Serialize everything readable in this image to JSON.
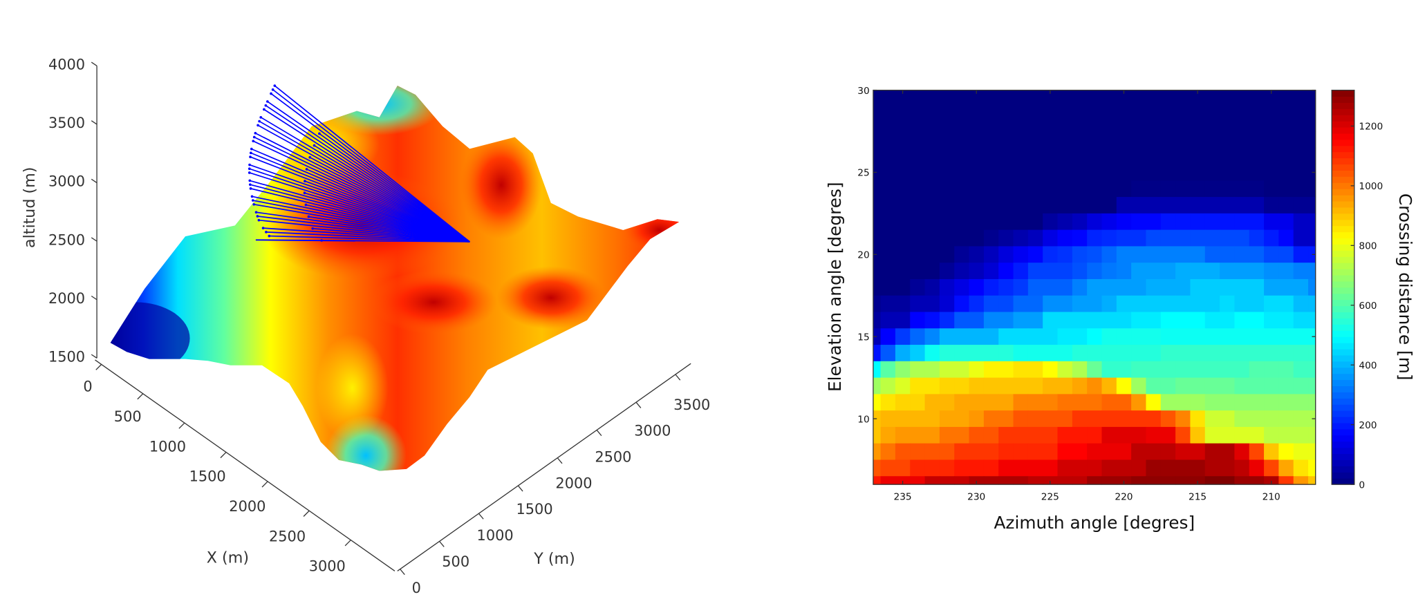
{
  "chart_data": [
    {
      "type": "surface",
      "xlabel": "X (m)",
      "ylabel": "Y (m)",
      "zlabel": "altitud (m)",
      "xticks": [
        "0",
        "500",
        "1000",
        "1500",
        "2000",
        "2500",
        "3000"
      ],
      "yticks": [
        "0",
        "500",
        "1000",
        "1500",
        "2000",
        "2500",
        "3000",
        "3500"
      ],
      "zticks": [
        "1500",
        "2000",
        "2500",
        "3000",
        "3500",
        "4000"
      ],
      "zlim": [
        1500,
        4000
      ],
      "colormap": "jet",
      "rays_color": "#0000ff"
    },
    {
      "type": "heatmap",
      "xlabel": "Azimuth angle [degres]",
      "ylabel": "Elevation angle [degres]",
      "colorbar_label": "Crossing distance [m]",
      "colormap": "jet",
      "clim": [
        0,
        1320
      ],
      "xlim": [
        237,
        207
      ],
      "ylim": [
        6,
        30
      ],
      "xticks": [
        "235",
        "230",
        "225",
        "220",
        "215",
        "210"
      ],
      "yticks": [
        "10",
        "15",
        "20",
        "25",
        "30"
      ],
      "colorbar_ticks": [
        "0",
        "200",
        "400",
        "600",
        "800",
        "1000",
        "1200"
      ],
      "x": [
        237,
        236,
        235,
        234,
        233,
        232,
        231,
        230,
        229,
        228,
        227,
        226,
        225,
        224,
        223,
        222,
        221,
        220,
        219,
        218,
        217,
        216,
        215,
        214,
        213,
        212,
        211,
        210,
        209,
        208,
        207
      ],
      "y": [
        30,
        29,
        28,
        27,
        26,
        25,
        24,
        23,
        22,
        21,
        20,
        19,
        18,
        17,
        16,
        15,
        14,
        13,
        12,
        11,
        10,
        9,
        8,
        7,
        6
      ],
      "z": [
        [
          0,
          0,
          0,
          0,
          0,
          0,
          0,
          0,
          0,
          0,
          0,
          0,
          0,
          0,
          0,
          0,
          0,
          0,
          0,
          0,
          0,
          0,
          0,
          0,
          0,
          0,
          0,
          0,
          0,
          0,
          0
        ],
        [
          0,
          0,
          0,
          0,
          0,
          0,
          0,
          0,
          0,
          0,
          0,
          0,
          0,
          0,
          0,
          0,
          0,
          0,
          0,
          0,
          0,
          0,
          0,
          0,
          0,
          0,
          0,
          0,
          0,
          0,
          0
        ],
        [
          0,
          0,
          0,
          0,
          0,
          0,
          0,
          0,
          0,
          0,
          0,
          0,
          0,
          0,
          0,
          0,
          0,
          0,
          0,
          0,
          0,
          0,
          0,
          0,
          0,
          0,
          0,
          0,
          0,
          0,
          0
        ],
        [
          0,
          0,
          0,
          0,
          0,
          0,
          0,
          0,
          0,
          0,
          0,
          0,
          0,
          0,
          0,
          0,
          0,
          0,
          0,
          0,
          0,
          0,
          0,
          0,
          0,
          0,
          0,
          0,
          0,
          0,
          0
        ],
        [
          0,
          0,
          0,
          0,
          0,
          0,
          0,
          0,
          0,
          0,
          0,
          0,
          0,
          0,
          0,
          0,
          0,
          0,
          0,
          0,
          0,
          0,
          0,
          0,
          0,
          0,
          0,
          0,
          0,
          0,
          0
        ],
        [
          0,
          0,
          0,
          0,
          0,
          0,
          0,
          0,
          0,
          0,
          0,
          0,
          0,
          0,
          0,
          0,
          0,
          0,
          0,
          0,
          0,
          0,
          0,
          0,
          0,
          0,
          0,
          0,
          0,
          0,
          0
        ],
        [
          0,
          0,
          0,
          0,
          0,
          0,
          0,
          0,
          0,
          0,
          0,
          0,
          0,
          0,
          0,
          0,
          0,
          0,
          10,
          10,
          10,
          10,
          10,
          10,
          10,
          10,
          10,
          0,
          0,
          0,
          0
        ],
        [
          0,
          0,
          0,
          0,
          0,
          0,
          0,
          0,
          0,
          0,
          0,
          0,
          0,
          0,
          0,
          0,
          0,
          60,
          60,
          60,
          60,
          60,
          60,
          60,
          60,
          60,
          60,
          25,
          25,
          25,
          25
        ],
        [
          0,
          0,
          0,
          0,
          0,
          0,
          0,
          0,
          0,
          0,
          0,
          0,
          40,
          60,
          80,
          120,
          140,
          160,
          170,
          170,
          190,
          190,
          190,
          190,
          190,
          190,
          190,
          140,
          140,
          90,
          90
        ],
        [
          0,
          0,
          0,
          0,
          0,
          0,
          0,
          0,
          20,
          40,
          60,
          80,
          130,
          160,
          170,
          210,
          220,
          230,
          230,
          260,
          260,
          260,
          260,
          260,
          260,
          260,
          230,
          200,
          170,
          90,
          90
        ],
        [
          0,
          0,
          0,
          0,
          0,
          0,
          30,
          50,
          80,
          120,
          150,
          170,
          220,
          230,
          260,
          270,
          300,
          330,
          330,
          330,
          330,
          330,
          330,
          290,
          290,
          290,
          290,
          260,
          260,
          200,
          200
        ],
        [
          0,
          0,
          0,
          0,
          0,
          30,
          60,
          80,
          110,
          165,
          200,
          250,
          250,
          250,
          270,
          300,
          320,
          330,
          370,
          370,
          370,
          390,
          390,
          390,
          370,
          370,
          370,
          350,
          350,
          330,
          330
        ],
        [
          0,
          0,
          0,
          30,
          50,
          100,
          130,
          165,
          200,
          220,
          240,
          290,
          290,
          290,
          330,
          370,
          370,
          370,
          370,
          390,
          390,
          390,
          430,
          430,
          430,
          430,
          430,
          380,
          380,
          380,
          340
        ],
        [
          20,
          40,
          40,
          70,
          70,
          110,
          180,
          220,
          260,
          260,
          300,
          300,
          350,
          350,
          370,
          370,
          390,
          430,
          430,
          430,
          430,
          430,
          430,
          430,
          450,
          430,
          430,
          450,
          450,
          410,
          410
        ],
        [
          40,
          70,
          70,
          165,
          180,
          220,
          280,
          280,
          340,
          340,
          370,
          370,
          450,
          450,
          450,
          450,
          450,
          450,
          470,
          470,
          495,
          495,
          495,
          470,
          470,
          495,
          495,
          470,
          470,
          450,
          450
        ],
        [
          70,
          165,
          240,
          300,
          340,
          400,
          400,
          400,
          400,
          450,
          450,
          450,
          450,
          470,
          470,
          495,
          520,
          520,
          520,
          520,
          510,
          510,
          510,
          510,
          510,
          510,
          510,
          510,
          510,
          510,
          510
        ],
        [
          190,
          280,
          390,
          430,
          510,
          540,
          540,
          540,
          540,
          540,
          520,
          520,
          520,
          520,
          540,
          540,
          540,
          540,
          540,
          540,
          560,
          560,
          560,
          560,
          560,
          560,
          560,
          560,
          560,
          560,
          560
        ],
        [
          495,
          610,
          680,
          720,
          720,
          760,
          760,
          800,
          840,
          840,
          860,
          860,
          825,
          760,
          720,
          630,
          560,
          560,
          575,
          575,
          575,
          575,
          575,
          575,
          575,
          575,
          600,
          600,
          600,
          575,
          575
        ],
        [
          700,
          740,
          780,
          860,
          860,
          880,
          880,
          900,
          900,
          900,
          900,
          900,
          920,
          920,
          940,
          970,
          920,
          825,
          700,
          610,
          610,
          630,
          630,
          630,
          630,
          610,
          610,
          610,
          610,
          610,
          610
        ],
        [
          825,
          860,
          880,
          880,
          920,
          920,
          940,
          940,
          940,
          940,
          985,
          985,
          985,
          1005,
          1005,
          1005,
          1025,
          1025,
          960,
          825,
          700,
          700,
          700,
          680,
          680,
          680,
          680,
          680,
          680,
          680,
          680
        ],
        [
          900,
          920,
          920,
          920,
          920,
          940,
          940,
          960,
          1005,
          1005,
          1045,
          1045,
          1045,
          1045,
          1085,
          1085,
          1085,
          1085,
          1085,
          1085,
          1045,
          985,
          860,
          760,
          760,
          720,
          720,
          720,
          720,
          720,
          720
        ],
        [
          900,
          940,
          960,
          960,
          960,
          1005,
          1005,
          1045,
          1045,
          1085,
          1085,
          1085,
          1085,
          1125,
          1125,
          1125,
          1195,
          1195,
          1195,
          1180,
          1180,
          1065,
          900,
          780,
          780,
          780,
          780,
          740,
          740,
          740,
          740
        ],
        [
          960,
          1005,
          1045,
          1045,
          1045,
          1045,
          1085,
          1085,
          1085,
          1105,
          1105,
          1105,
          1105,
          1155,
          1155,
          1180,
          1180,
          1180,
          1240,
          1240,
          1240,
          1215,
          1215,
          1260,
          1260,
          1195,
          1065,
          900,
          825,
          800,
          800
        ],
        [
          1045,
          1065,
          1065,
          1105,
          1105,
          1105,
          1125,
          1125,
          1125,
          1170,
          1170,
          1170,
          1170,
          1215,
          1215,
          1215,
          1240,
          1240,
          1240,
          1285,
          1285,
          1285,
          1285,
          1260,
          1260,
          1240,
          1180,
          1065,
          940,
          860,
          825
        ],
        [
          1125,
          1180,
          1180,
          1180,
          1230,
          1230,
          1230,
          1260,
          1260,
          1260,
          1260,
          1240,
          1240,
          1240,
          1240,
          1285,
          1285,
          1285,
          1300,
          1300,
          1300,
          1300,
          1300,
          1320,
          1320,
          1285,
          1285,
          1260,
          1085,
          960,
          900
        ]
      ]
    }
  ]
}
